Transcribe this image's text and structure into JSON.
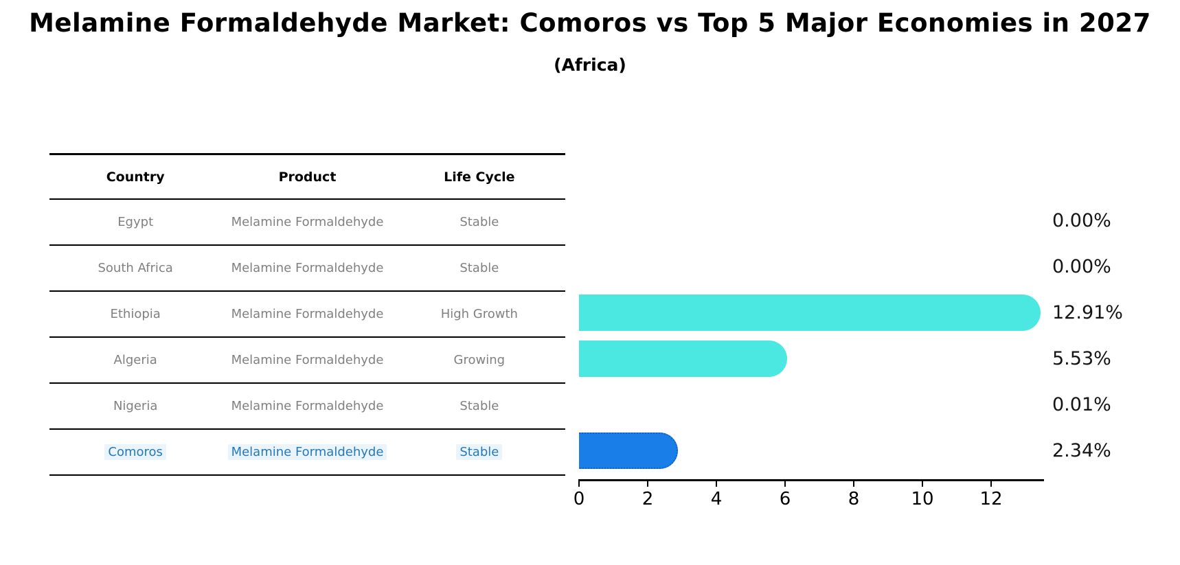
{
  "title": "Melamine Formaldehyde Market: Comoros vs Top 5 Major Economies in 2027",
  "subtitle": "(Africa)",
  "table": {
    "headers": [
      "Country",
      "Product",
      "Life Cycle"
    ],
    "rows": [
      {
        "country": "Egypt",
        "product": "Melamine Formaldehyde",
        "life_cycle": "Stable",
        "highlight": false
      },
      {
        "country": "South Africa",
        "product": "Melamine Formaldehyde",
        "life_cycle": "Stable",
        "highlight": false
      },
      {
        "country": "Ethiopia",
        "product": "Melamine Formaldehyde",
        "life_cycle": "High Growth",
        "highlight": false
      },
      {
        "country": "Algeria",
        "product": "Melamine Formaldehyde",
        "life_cycle": "Growing",
        "highlight": false
      },
      {
        "country": "Nigeria",
        "product": "Melamine Formaldehyde",
        "life_cycle": "Stable",
        "highlight": false
      },
      {
        "country": "Comoros",
        "product": "Melamine Formaldehyde",
        "life_cycle": "Stable",
        "highlight": true
      }
    ]
  },
  "chart_data": {
    "type": "bar",
    "orientation": "horizontal",
    "title": "Melamine Formaldehyde Market: Comoros vs Top 5 Major Economies in 2027 (Africa)",
    "categories": [
      "Egypt",
      "South Africa",
      "Ethiopia",
      "Algeria",
      "Nigeria",
      "Comoros"
    ],
    "values": [
      0.0,
      0.0,
      12.91,
      5.53,
      0.01,
      2.34
    ],
    "value_labels": [
      "0.00%",
      "0.00%",
      "12.91%",
      "5.53%",
      "0.01%",
      "2.34%"
    ],
    "xlabel": "",
    "ylabel": "",
    "xlim": [
      0,
      13.5
    ],
    "xticks": [
      0,
      2,
      4,
      6,
      8,
      10,
      12
    ],
    "grid": false,
    "legend": "none",
    "bar_color": "#4be8e2",
    "highlight_index": 5,
    "highlight_color": "#1a7ee8"
  },
  "colors": {
    "background": "#ffffff",
    "bar_default": "#4be8e2",
    "bar_highlight": "#1a7ee8",
    "bar_highlight_edge": "#1261c9",
    "highlight_text": "#2878b8",
    "table_body_text": "#808080",
    "table_header_text": "#000000",
    "axis": "#000000"
  }
}
